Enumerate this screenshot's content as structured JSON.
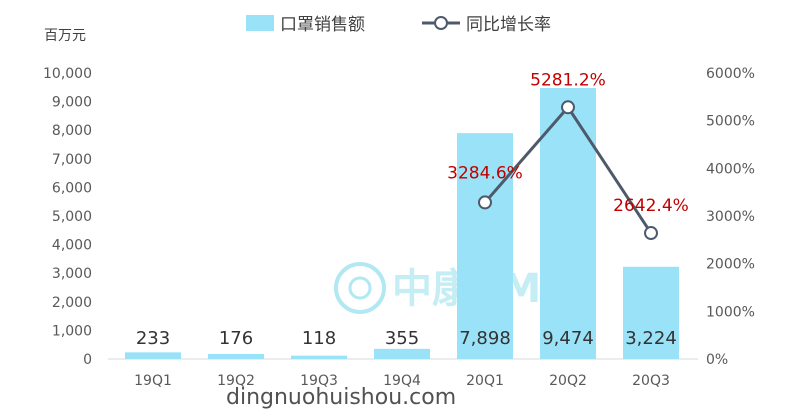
{
  "chart_data": {
    "type": "bar",
    "categories": [
      "19Q1",
      "19Q2",
      "19Q3",
      "19Q4",
      "20Q1",
      "20Q2",
      "20Q3"
    ],
    "series": [
      {
        "name": "口罩销售额",
        "type": "bar",
        "axis": "left",
        "values": [
          233,
          176,
          118,
          355,
          7898,
          9474,
          3224
        ],
        "labels": [
          "233",
          "176",
          "118",
          "355",
          "7,898",
          "9,474",
          "3,224"
        ],
        "color": "#99e2f7"
      },
      {
        "name": "同比增长率",
        "type": "line",
        "axis": "right",
        "values": [
          null,
          null,
          null,
          null,
          3284.6,
          5281.2,
          2642.4
        ],
        "labels": [
          "",
          "",
          "",
          "",
          "3284.6%",
          "5281.2%",
          "2642.4%"
        ],
        "color": "#4e5a6b",
        "label_color": "#c00000"
      }
    ],
    "ylabel": "百万元",
    "ylim": [
      0,
      10000
    ],
    "y_ticks": [
      "0",
      "1,000",
      "2,000",
      "3,000",
      "4,000",
      "5,000",
      "6,000",
      "7,000",
      "8,000",
      "9,000",
      "10,000"
    ],
    "y2lim": [
      0,
      6000
    ],
    "y2_ticks": [
      "0%",
      "1000%",
      "2000%",
      "3000%",
      "4000%",
      "5000%",
      "6000%"
    ],
    "legend_position": "top",
    "grid": false
  },
  "watermark": {
    "logo_text": "中康CMH",
    "site_text": "dingnuohuishou.com"
  }
}
